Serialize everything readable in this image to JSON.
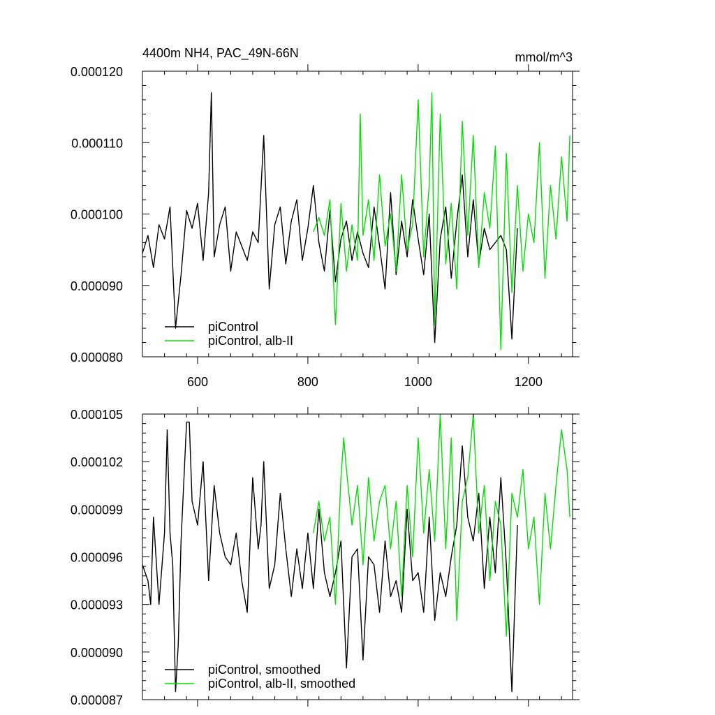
{
  "chart_data": [
    {
      "type": "line",
      "title": "4400m NH4, PAC_49N-66N",
      "units": "mmol/m^3",
      "xlim": [
        500,
        1280
      ],
      "ylim": [
        8e-05,
        0.00012
      ],
      "x_ticks": [
        600,
        800,
        1000,
        1200
      ],
      "x_tick_labels": [
        "600",
        "800",
        "1000",
        "1200"
      ],
      "y_ticks": [
        8e-05,
        9e-05,
        0.0001,
        0.00011,
        0.00012
      ],
      "y_tick_labels": [
        "0.000080",
        "0.000090",
        "0.000100",
        "0.000110",
        "0.000120"
      ],
      "legend_position": "bottom-left",
      "series": [
        {
          "name": "piControl",
          "color": "#000000",
          "x": [
            500,
            510,
            520,
            530,
            540,
            550,
            560,
            570,
            580,
            590,
            600,
            610,
            620,
            625,
            630,
            640,
            650,
            660,
            670,
            680,
            690,
            700,
            710,
            720,
            730,
            740,
            750,
            760,
            770,
            780,
            790,
            800,
            810,
            820,
            830,
            840,
            850,
            860,
            870,
            880,
            890,
            900,
            910,
            920,
            930,
            940,
            950,
            960,
            970,
            980,
            990,
            1000,
            1010,
            1020,
            1030,
            1040,
            1050,
            1060,
            1070,
            1080,
            1090,
            1100,
            1110,
            1120,
            1130,
            1140,
            1150,
            1160,
            1170,
            1180
          ],
          "y": [
            9.45e-05,
            9.7e-05,
            9.25e-05,
            9.85e-05,
            9.65e-05,
            0.000101,
            8.4e-05,
            9.15e-05,
            0.0001005,
            9.8e-05,
            0.0001015,
            9.35e-05,
            0.000103,
            0.000117,
            9.4e-05,
            9.85e-05,
            0.000101,
            9.2e-05,
            9.75e-05,
            9.55e-05,
            9.35e-05,
            9.75e-05,
            9.6e-05,
            0.000111,
            8.95e-05,
            9.85e-05,
            0.000101,
            9.3e-05,
            9.9e-05,
            0.000102,
            9.35e-05,
            9.8e-05,
            0.000104,
            9.6e-05,
            9.2e-05,
            0.0001005,
            9.05e-05,
            9.65e-05,
            9.9e-05,
            9.35e-05,
            9.75e-05,
            9.45e-05,
            9.25e-05,
            0.000101,
            9.55e-05,
            8.95e-05,
            0.000103,
            9.15e-05,
            9.9e-05,
            9.4e-05,
            0.000102,
            9.65e-05,
            9.15e-05,
            0.0001,
            8.2e-05,
            9.65e-05,
            0.000101,
            9.1e-05,
            9.9e-05,
            0.0001055,
            9.4e-05,
            0.000102,
            9.3e-05,
            9.8e-05,
            9.5e-05,
            9.6e-05,
            9.7e-05,
            9.5e-05,
            8.25e-05,
            9.8e-05
          ]
        },
        {
          "name": "piControl, alb-II",
          "color": "#00e000",
          "x": [
            810,
            820,
            830,
            840,
            850,
            860,
            870,
            880,
            890,
            895,
            900,
            910,
            920,
            930,
            940,
            950,
            960,
            970,
            980,
            990,
            1000,
            1010,
            1020,
            1025,
            1030,
            1040,
            1050,
            1060,
            1070,
            1080,
            1090,
            1100,
            1110,
            1120,
            1130,
            1140,
            1150,
            1160,
            1170,
            1180,
            1190,
            1200,
            1210,
            1220,
            1230,
            1240,
            1250,
            1260,
            1270,
            1275
          ],
          "y": [
            9.75e-05,
            9.95e-05,
            9.7e-05,
            0.000102,
            8.45e-05,
            0.0001015,
            9.2e-05,
            9.85e-05,
            9.35e-05,
            0.000114,
            9.7e-05,
            0.000102,
            9.35e-05,
            0.0001055,
            9.55e-05,
            0.0001,
            9.2e-05,
            0.0001055,
            9.5e-05,
            9.85e-05,
            0.000116,
            9.4e-05,
            0.000104,
            0.000117,
            8.45e-05,
            0.000114,
            9.3e-05,
            0.0001015,
            8.95e-05,
            0.000113,
            9.7e-05,
            0.000111,
            9.25e-05,
            0.000103,
            9.8e-05,
            0.0001095,
            8.1e-05,
            0.0001085,
            8.9e-05,
            0.000104,
            9.2e-05,
            0.0001,
            9.6e-05,
            0.00011,
            9.1e-05,
            0.000104,
            9.65e-05,
            0.000108,
            9.9e-05,
            0.000111
          ]
        }
      ]
    },
    {
      "type": "line",
      "xlim": [
        500,
        1280
      ],
      "ylim": [
        8.7e-05,
        0.000105
      ],
      "x_ticks": [
        600,
        800,
        1000,
        1200
      ],
      "y_ticks": [
        8.7e-05,
        9e-05,
        9.3e-05,
        9.6e-05,
        9.9e-05,
        0.000102,
        0.000105
      ],
      "y_tick_labels": [
        "0.000087",
        "0.000090",
        "0.000093",
        "0.000096",
        "0.000099",
        "0.000102",
        "0.000105"
      ],
      "legend_position": "bottom-left",
      "series": [
        {
          "name": "piControl, smoothed",
          "color": "#000000",
          "x": [
            500,
            510,
            515,
            520,
            530,
            540,
            545,
            550,
            555,
            560,
            565,
            570,
            580,
            585,
            590,
            600,
            610,
            620,
            630,
            640,
            650,
            660,
            670,
            680,
            690,
            700,
            710,
            715,
            720,
            730,
            740,
            750,
            760,
            770,
            780,
            790,
            800,
            810,
            820,
            830,
            840,
            850,
            860,
            870,
            880,
            890,
            900,
            910,
            920,
            930,
            940,
            950,
            960,
            970,
            980,
            990,
            1000,
            1010,
            1020,
            1030,
            1040,
            1050,
            1060,
            1070,
            1080,
            1090,
            1100,
            1110,
            1120,
            1130,
            1140,
            1150,
            1160,
            1170,
            1180
          ],
          "y": [
            9.55e-05,
            9.45e-05,
            9.3e-05,
            9.85e-05,
            9.3e-05,
            9.75e-05,
            0.000104,
            9.75e-05,
            9.55e-05,
            8.75e-05,
            9.05e-05,
            9.7e-05,
            0.0001045,
            0.0001045,
            9.95e-05,
            9.8e-05,
            0.000102,
            9.45e-05,
            0.0001005,
            9.75e-05,
            9.6e-05,
            9.55e-05,
            9.75e-05,
            9.45e-05,
            9.25e-05,
            0.000101,
            9.65e-05,
            9.8e-05,
            0.000102,
            9.4e-05,
            9.55e-05,
            0.0001,
            9.65e-05,
            9.35e-05,
            9.65e-05,
            9.4e-05,
            9.75e-05,
            9.4e-05,
            9.9e-05,
            9.5e-05,
            9.35e-05,
            9.5e-05,
            9.7e-05,
            8.9e-05,
            9.6e-05,
            9.65e-05,
            8.95e-05,
            9.6e-05,
            9.55e-05,
            9.25e-05,
            9.7e-05,
            9.35e-05,
            9.45e-05,
            9.25e-05,
            9.9e-05,
            9.45e-05,
            9.5e-05,
            9.25e-05,
            9.85e-05,
            9.2e-05,
            9.5e-05,
            9.35e-05,
            9.6e-05,
            9.8e-05,
            0.000103,
            9.85e-05,
            9.7e-05,
            0.0001,
            9.4e-05,
            9.85e-05,
            9.5e-05,
            0.000101,
            9.55e-05,
            8.75e-05,
            9.8e-05
          ]
        },
        {
          "name": "piControl, alb-II, smoothed",
          "color": "#00e000",
          "x": [
            810,
            820,
            830,
            840,
            850,
            860,
            865,
            870,
            880,
            890,
            900,
            910,
            920,
            930,
            940,
            950,
            960,
            970,
            980,
            990,
            1000,
            1010,
            1020,
            1030,
            1040,
            1050,
            1060,
            1070,
            1080,
            1090,
            1100,
            1110,
            1120,
            1130,
            1140,
            1150,
            1160,
            1170,
            1180,
            1190,
            1200,
            1210,
            1220,
            1230,
            1240,
            1250,
            1260,
            1270,
            1275
          ],
          "y": [
            9.75e-05,
            9.95e-05,
            9.7e-05,
            9.85e-05,
            9.3e-05,
            0.000101,
            0.0001035,
            0.0001015,
            9.8e-05,
            0.0001005,
            9.55e-05,
            0.000101,
            9.7e-05,
            9.95e-05,
            0.0001005,
            9.65e-05,
            9.95e-05,
            9.35e-05,
            0.0001005,
            9.6e-05,
            0.0001035,
            9.75e-05,
            0.0001015,
            9.7e-05,
            0.000105,
            9.65e-05,
            0.0001035,
            9.2e-05,
            9.95e-05,
            0.000101,
            0.000105,
            9.75e-05,
            0.0001005,
            9.45e-05,
            9.95e-05,
            9.8e-05,
            9.1e-05,
            0.0001,
            9.85e-05,
            0.0001015,
            9.65e-05,
            9.85e-05,
            9.3e-05,
            0.0001,
            9.65e-05,
            0.0001005,
            0.000104,
            0.0001015,
            9.85e-05
          ]
        }
      ]
    }
  ]
}
